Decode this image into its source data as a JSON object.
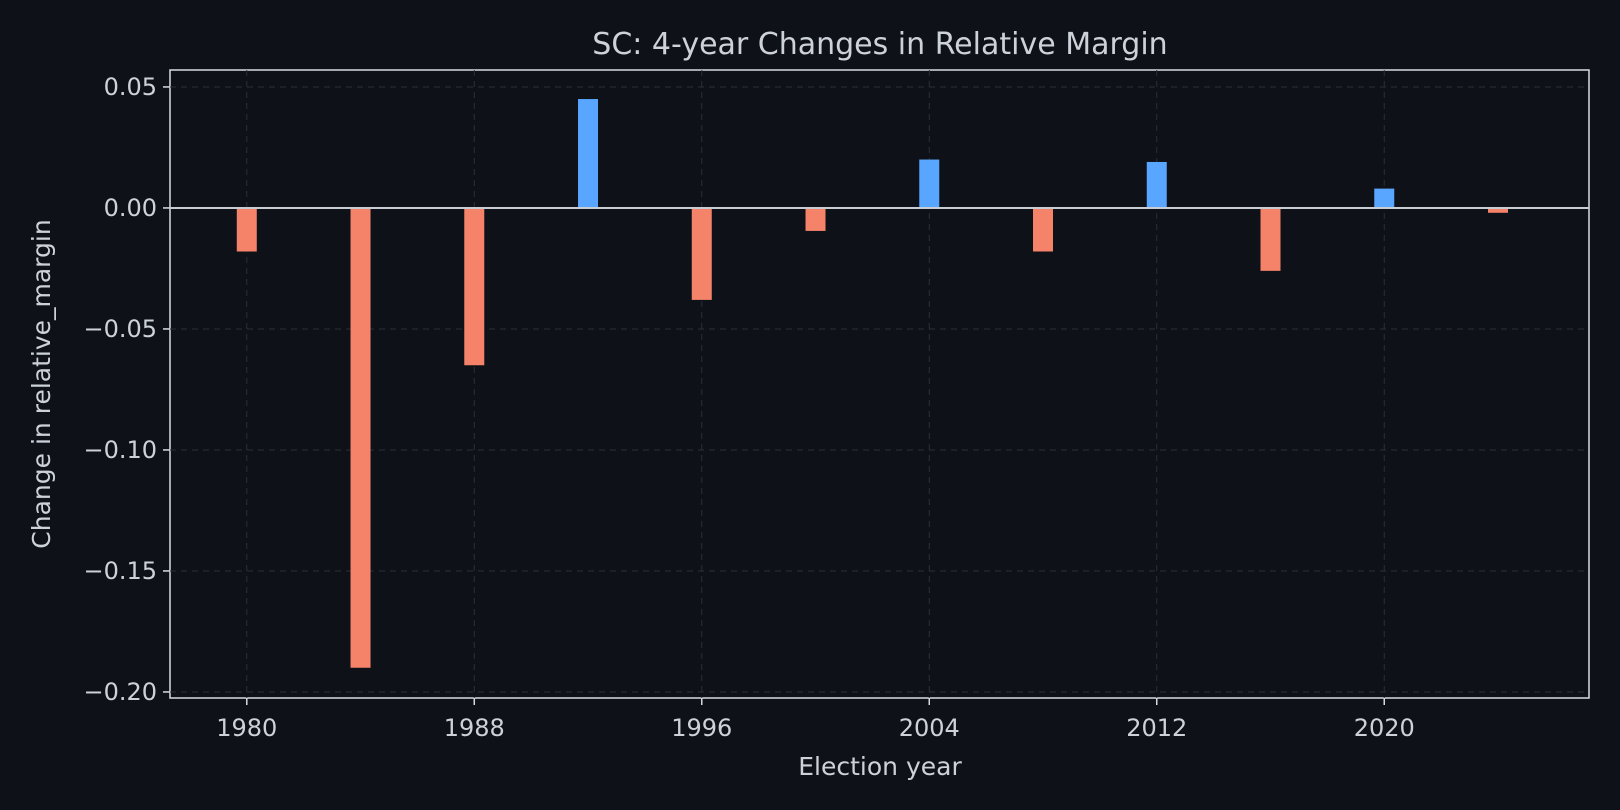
{
  "chart_data": {
    "type": "bar",
    "title": "SC: 4-year Changes in Relative Margin",
    "xlabel": "Election year",
    "ylabel": "Change in relative_margin",
    "x": [
      1980,
      1984,
      1988,
      1992,
      1996,
      2000,
      2004,
      2008,
      2012,
      2016,
      2020,
      2024
    ],
    "values": [
      -0.018,
      -0.19,
      -0.065,
      0.045,
      -0.038,
      -0.0095,
      0.02,
      -0.018,
      0.019,
      -0.026,
      0.008,
      -0.002
    ],
    "xlim": [
      1977.3,
      2027.2
    ],
    "ylim": [
      -0.2025,
      0.057
    ],
    "xticks": [
      1980,
      1988,
      1996,
      2004,
      2012,
      2020
    ],
    "yticks": [
      0.05,
      0.0,
      -0.05,
      -0.1,
      -0.15,
      -0.2
    ],
    "ytick_labels": [
      "0.05",
      "0.00",
      "−0.05",
      "−0.10",
      "−0.15",
      "−0.20"
    ],
    "grid": true,
    "colors": {
      "positive": "#58a6ff",
      "negative": "#f5836a",
      "background": "#0e1118"
    }
  }
}
